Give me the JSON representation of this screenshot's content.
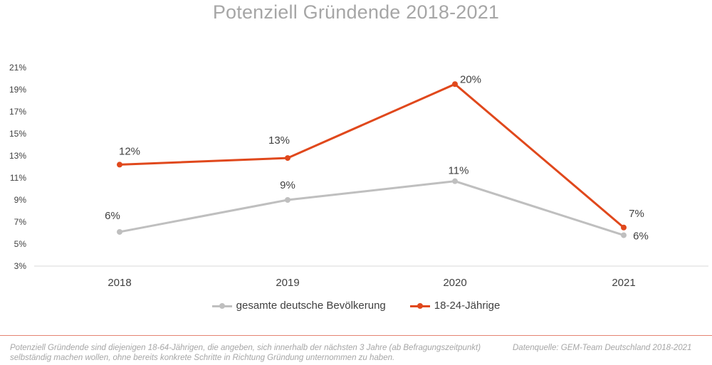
{
  "chart_data": {
    "type": "line",
    "title": "Potenziell Gründende 2018-2021",
    "categories": [
      "2018",
      "2019",
      "2020",
      "2021"
    ],
    "ylim": [
      3,
      21
    ],
    "yticks": [
      "3%",
      "5%",
      "7%",
      "9%",
      "11%",
      "13%",
      "15%",
      "17%",
      "19%",
      "21%"
    ],
    "ytick_values": [
      3,
      5,
      7,
      9,
      11,
      13,
      15,
      17,
      19,
      21
    ],
    "grid": "horizontal baseline only",
    "legend_position": "bottom",
    "series": [
      {
        "name": "gesamte deutsche Bevölkerung",
        "color": "#bfbfbf",
        "values": [
          6.1,
          9.0,
          10.7,
          5.8
        ],
        "labels": [
          "6%",
          "9%",
          "11%",
          "6%"
        ]
      },
      {
        "name": "18-24-Jährige",
        "color": "#e0481c",
        "values": [
          12.2,
          12.8,
          19.5,
          6.5
        ],
        "labels": [
          "12%",
          "13%",
          "20%",
          "7%"
        ]
      }
    ]
  },
  "footnote": "Potenziell Gründende sind diejenigen 18-64-Jährigen, die angeben, sich innerhalb der nächsten 3 Jahre (ab Befragungszeitpunkt) selbständig machen wollen, ohne bereits konkrete Schritte in Richtung Gründung unternommen zu haben.",
  "source": "Datenquelle: GEM-Team Deutschland 2018-2021",
  "colors": {
    "title": "#a6a6a6",
    "axis_text": "#404040",
    "divider": "#e58472"
  }
}
